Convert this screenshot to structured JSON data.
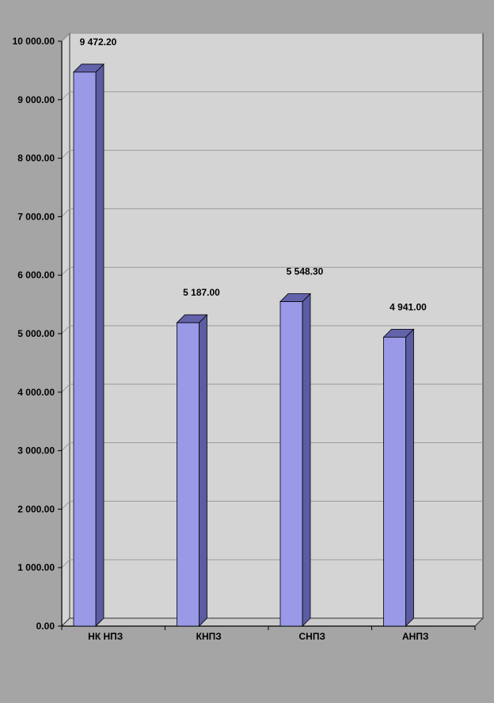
{
  "chart_data": {
    "type": "bar",
    "variant": "3d-column",
    "title": "",
    "categories": [
      "НК НПЗ",
      "КНПЗ",
      "СНПЗ",
      "АНПЗ"
    ],
    "values": [
      9472.2,
      5187.0,
      5548.3,
      4941.0
    ],
    "value_labels": [
      "9 472.20",
      "5 187.00",
      "5 548.30",
      "4 941.00"
    ],
    "ylim": [
      0,
      10000
    ],
    "y_tick_step": 1000,
    "y_tick_labels": [
      "0.00",
      "1 000.00",
      "2 000.00",
      "3 000.00",
      "4 000.00",
      "5 000.00",
      "6 000.00",
      "7 000.00",
      "8 000.00",
      "9 000.00",
      "10 000.00"
    ],
    "grid": true,
    "legend": "none",
    "colors": {
      "background": "#A5A5A5",
      "wall": "#D4D4D4",
      "floor": "#CBCBCB",
      "gridline": "#9A9A9A",
      "axis": "#000000",
      "bar_front": "#9999E8",
      "bar_side": "#5C5CA2",
      "bar_top": "#6363AC",
      "bar_border": "#000000",
      "text": "#000000"
    }
  }
}
